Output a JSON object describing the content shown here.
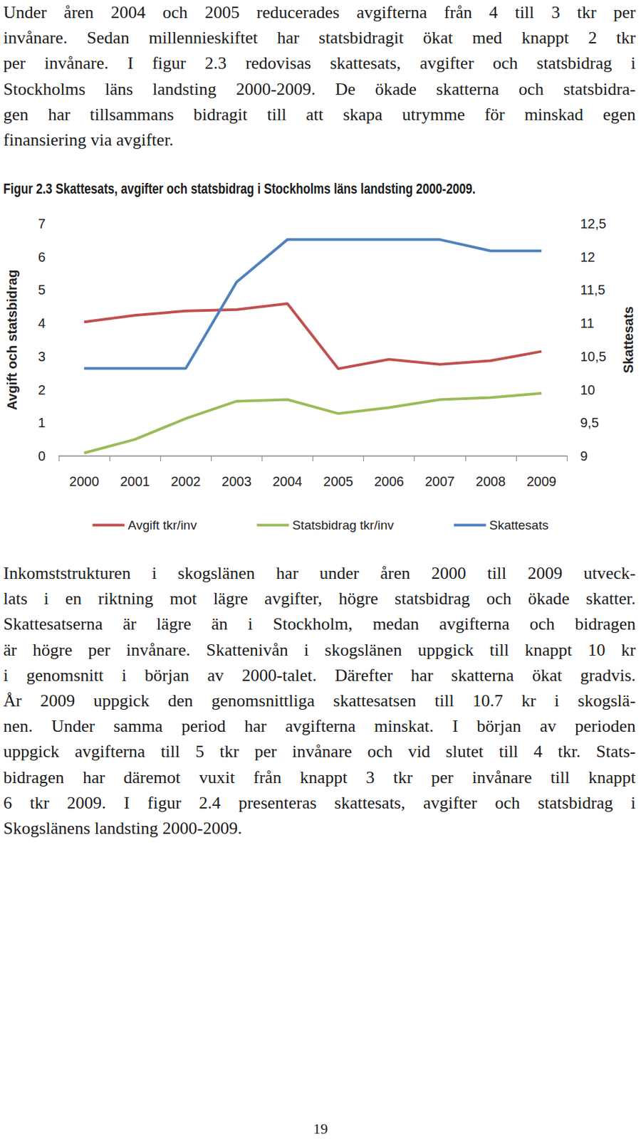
{
  "document": {
    "text_before": [
      "Under åren 2004 och 2005 reducerades avgifterna från 4 till 3 tkr per",
      "invånare. Sedan millennieskiftet har statsbidragit ökat med knappt 2 tkr",
      "per invånare. I figur 2.3 redovisas skattesats, avgifter och statsbidrag i",
      "Stockholms läns landsting 2000-2009. De ökade skatterna och statsbidra-",
      "gen har tillsammans bidragit till att skapa utrymme för minskad egen",
      "finansiering via avgifter."
    ],
    "text_after": [
      "Inkomststrukturen i skogslänen har under åren 2000 till 2009 utveck-",
      "lats i en riktning mot lägre avgifter, högre statsbidrag och ökade skatter.",
      "Skattesatserna är lägre än i Stockholm, medan avgifterna och bidragen",
      "är högre per invånare. Skattenivån i skogslänen uppgick till knappt 10 kr",
      "i genomsnitt i början av 2000-talet. Därefter har skatterna ökat gradvis.",
      "År 2009 uppgick den genomsnittliga skattesatsen till 10.7 kr i skogslä-",
      "nen. Under samma period har avgifterna minskat. I början av perioden",
      "uppgick avgifterna till 5 tkr per invånare och vid slutet till 4 tkr. Stats-",
      "bidragen har däremot vuxit från knappt 3 tkr per invånare till knappt",
      "6 tkr 2009. I figur 2.4 presenteras skattesats, avgifter och statsbidrag i",
      "Skogslänens landsting 2000-2009."
    ],
    "page_number": "19"
  },
  "chart_data": {
    "type": "line",
    "title": "Figur 2.3 Skattesats, avgifter och statsbidrag i Stockholms läns landsting 2000-2009.",
    "y_label": "Avgift och statsbidrag",
    "y2_label": "Skattesats",
    "categories": [
      "2000",
      "2001",
      "2002",
      "2003",
      "2004",
      "2005",
      "2006",
      "2007",
      "2008",
      "2009"
    ],
    "series": [
      {
        "name": "Avgift tkr/inv",
        "color": "#c0504d",
        "axis": "y",
        "values": [
          4.04,
          4.24,
          4.37,
          4.41,
          4.59,
          2.63,
          2.91,
          2.76,
          2.87,
          3.15
        ]
      },
      {
        "name": "Statsbidrag tkr/inv",
        "color": "#9bbb59",
        "axis": "y",
        "values": [
          0.09,
          0.5,
          1.13,
          1.65,
          1.7,
          1.28,
          1.46,
          1.7,
          1.76,
          1.89
        ]
      },
      {
        "name": "Skattesats",
        "color": "#4f81bd",
        "axis": "y2",
        "values": [
          10.32,
          10.32,
          10.32,
          11.62,
          12.26,
          12.26,
          12.26,
          12.26,
          12.09,
          12.09
        ]
      }
    ],
    "ylim": [
      0,
      7
    ],
    "yticks": [
      0,
      1,
      2,
      3,
      4,
      5,
      6,
      7
    ],
    "y2lim": [
      9,
      12.5
    ],
    "y2ticks": [
      9,
      {
        "value": 9.5,
        "label": "9,5"
      },
      10,
      {
        "value": 10.5,
        "label": "10,5"
      },
      11,
      {
        "value": 11.5,
        "label": "11,5"
      },
      12,
      {
        "value": 12.5,
        "label": "12,5"
      }
    ],
    "legend": "bottom",
    "grid": false
  }
}
